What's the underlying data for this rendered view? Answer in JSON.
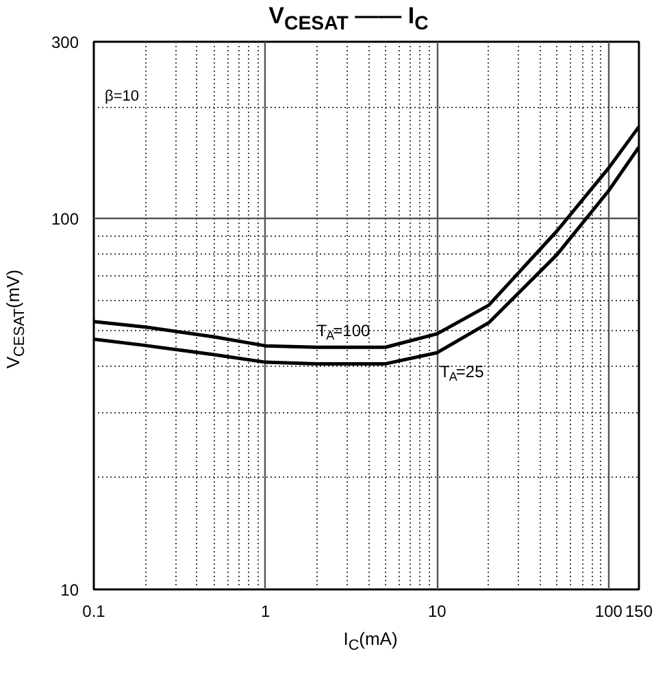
{
  "chart_data": {
    "type": "line",
    "title": "V$_{CESAT}$ —— I$_{C}$",
    "xlabel": "I$_{C}$(mA)",
    "ylabel": "V$_{CESAT}$(mV)",
    "log": "xy",
    "xlim": [
      0.1,
      150
    ],
    "ylim": [
      10,
      300
    ],
    "xticks": [
      0.1,
      1,
      10,
      100,
      150
    ],
    "yticks": [
      10,
      100,
      300
    ],
    "grid": true,
    "marker": "none",
    "line_style": "solid",
    "x": [
      0.1,
      0.2,
      0.5,
      1,
      2,
      5,
      10,
      20,
      50,
      100,
      150
    ],
    "series": [
      {
        "color": "#000000",
        "values": [
          52.8,
          51,
          48,
          45.4,
          45,
          45,
          48.9,
          58.4,
          92.7,
          137,
          177
        ]
      },
      {
        "color": "#000000",
        "values": [
          47.3,
          45.5,
          43,
          41,
          40.6,
          40.6,
          43.5,
          52.4,
          80,
          119,
          156
        ]
      }
    ],
    "annotations": [
      "β=10",
      {
        "text": "T$_{A}$=100",
        "x": 5,
        "y": 45
      },
      {
        "text": "T$_{A}$=25",
        "x": 10,
        "y": 43.5
      }
    ]
  }
}
